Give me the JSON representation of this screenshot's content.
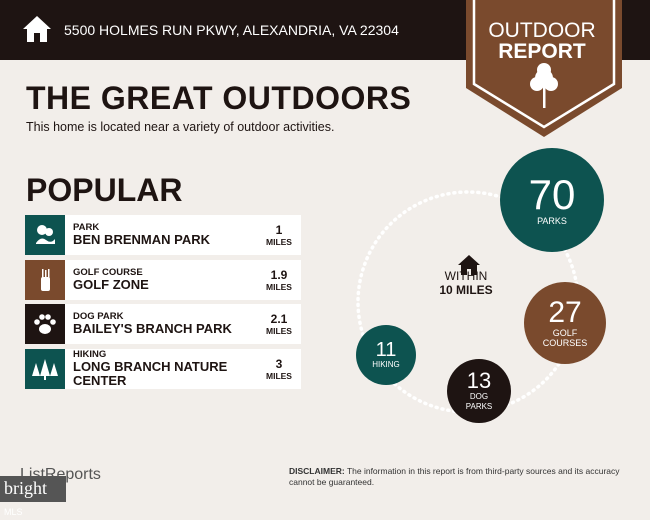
{
  "header": {
    "address": "5500 HOLMES RUN PKWY, ALEXANDRIA, VA 22304",
    "icon": "house-icon"
  },
  "badge": {
    "line1": "OUTDOOR",
    "line2": "REPORT",
    "icon": "tree-icon"
  },
  "title": "THE GREAT OUTDOORS",
  "subtitle": "This home is located near a variety of outdoor activities.",
  "popular": {
    "heading": "POPULAR",
    "items": [
      {
        "category": "PARK",
        "name": "BEN BRENMAN PARK",
        "distance": "1",
        "unit": "MILES",
        "icon": "park-icon",
        "color": "#0d5350"
      },
      {
        "category": "GOLF COURSE",
        "name": "GOLF ZONE",
        "distance": "1.9",
        "unit": "MILES",
        "icon": "golf-bag-icon",
        "color": "#7a4a2d"
      },
      {
        "category": "DOG PARK",
        "name": "BAILEY'S BRANCH PARK",
        "distance": "2.1",
        "unit": "MILES",
        "icon": "paw-icon",
        "color": "#1e1412"
      },
      {
        "category": "HIKING",
        "name": "LONG BRANCH NATURE CENTER",
        "distance": "3",
        "unit": "MILES",
        "icon": "pine-trees-icon",
        "color": "#0d5350"
      }
    ]
  },
  "within": {
    "line1": "WITHIN",
    "line2": "10 MILES"
  },
  "counts": [
    {
      "value": "70",
      "label": "PARKS"
    },
    {
      "value": "27",
      "label": "GOLF COURSES"
    },
    {
      "value": "11",
      "label": "HIKING"
    },
    {
      "value": "13",
      "label": "DOG PARKS"
    }
  ],
  "footer": {
    "logo": "ListReports",
    "mls": "bright",
    "mls_suffix": "MLS",
    "disclaimer_label": "DISCLAIMER:",
    "disclaimer": " The information in this report is from third-party sources and its accuracy cannot be guaranteed."
  },
  "colors": {
    "teal": "#0d5350",
    "brown": "#7a4a2d",
    "dark": "#1e1412",
    "bg": "#f2eeea"
  }
}
